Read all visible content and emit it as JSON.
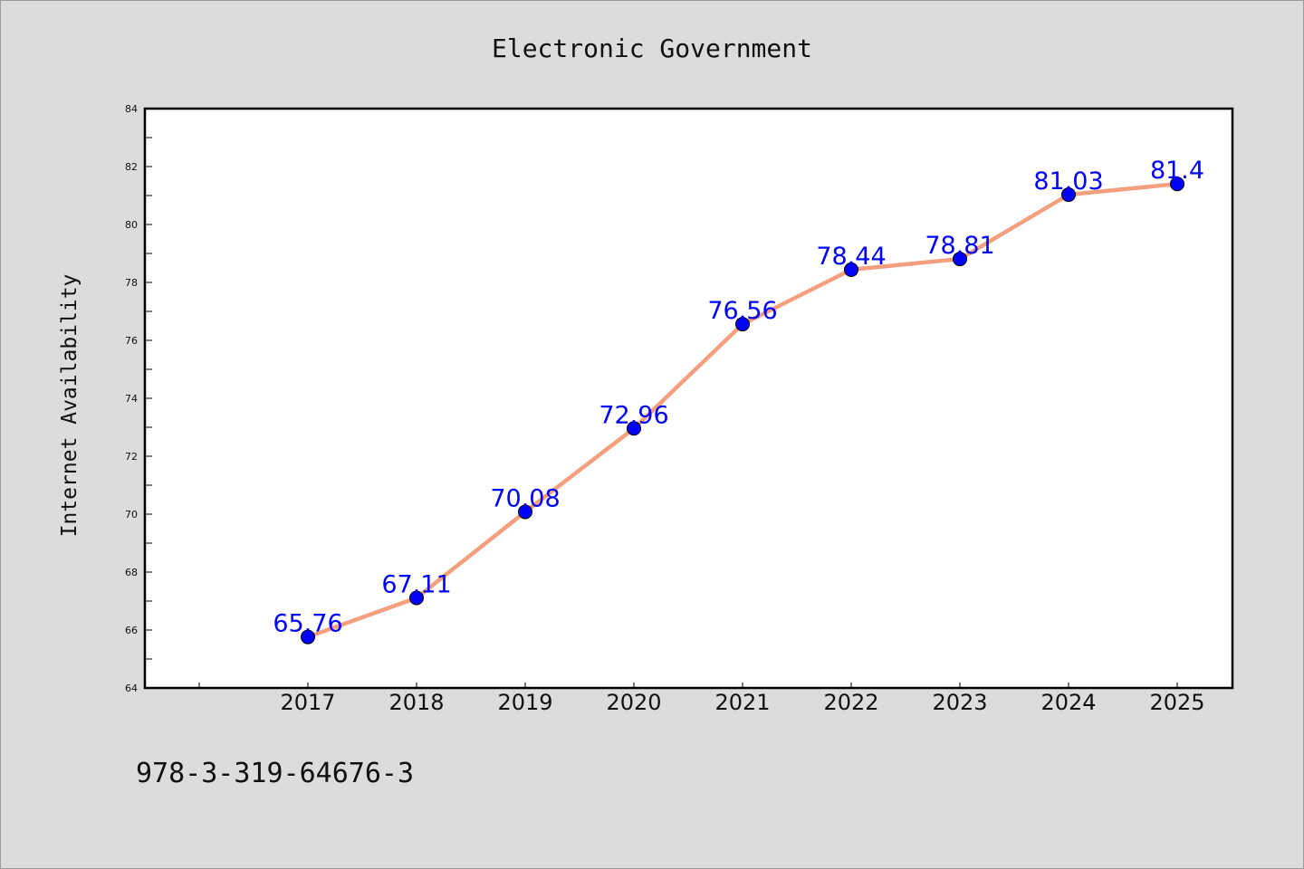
{
  "chart_data": {
    "type": "line",
    "title": "Electronic Government",
    "xlabel": "",
    "ylabel": "Internet Availability",
    "categories": [
      "2017",
      "2018",
      "2019",
      "2020",
      "2021",
      "2022",
      "2023",
      "2024",
      "2025"
    ],
    "series": [
      {
        "values": [
          65.76,
          67.11,
          70.08,
          72.96,
          76.56,
          78.44,
          78.81,
          81.03,
          81.4
        ]
      }
    ],
    "data_labels": [
      "65.76",
      "67.11",
      "70.08",
      "72.96",
      "76.56",
      "78.44",
      "78.81",
      "81.03",
      "81.4"
    ],
    "ylim": [
      64,
      84
    ],
    "yticks": [
      64,
      66,
      68,
      70,
      72,
      74,
      76,
      78,
      80,
      82,
      84
    ],
    "grid": false,
    "line_color": "#f4a07f",
    "marker_color": "#0000ff",
    "label_color": "#0000ff"
  },
  "footer_text": "978-3-319-64676-3"
}
